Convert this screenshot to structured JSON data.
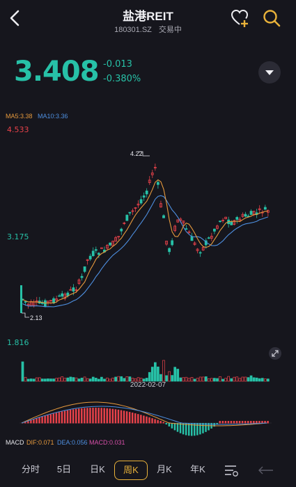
{
  "header": {
    "title": "盐港REIT",
    "code": "180301.SZ",
    "status": "交易中"
  },
  "quote": {
    "price": "3.408",
    "change": "-0.013",
    "change_pct": "-0.380%"
  },
  "chart": {
    "ma5_label": "MA5:3.38",
    "ma10_label": "MA10:3.36",
    "price_max_label": "4.533",
    "price_mid_label": "3.175",
    "high_marker": "4.22",
    "low_marker": "2.13",
    "volume_label": "1.816",
    "date_label": "2022-02-07"
  },
  "macd": {
    "title": "MACD",
    "dif": "DIF:0.071",
    "dea": "DEA:0.056",
    "macd": "MACD:0.031"
  },
  "tabs": [
    "分时",
    "5日",
    "日K",
    "周K",
    "月K",
    "年K"
  ],
  "active_tab": "周K",
  "colors": {
    "up": "#e8424a",
    "down": "#27c1a7",
    "ma5": "#e79a3d",
    "ma10": "#4e8fe0",
    "accent": "#e9b23a"
  }
}
